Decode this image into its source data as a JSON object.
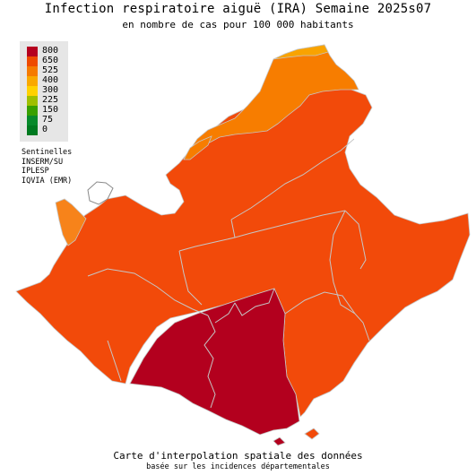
{
  "title": "Infection respiratoire aiguë (IRA) Semaine 2025s07",
  "subtitle": "en nombre de cas pour 100 000 habitants",
  "legend": [
    {
      "label": "800",
      "color": "#b5001f"
    },
    {
      "label": "650",
      "color": "#ee4a00"
    },
    {
      "label": "525",
      "color": "#f57a00"
    },
    {
      "label": "400",
      "color": "#f9a800"
    },
    {
      "label": "300",
      "color": "#ffd100"
    },
    {
      "label": "225",
      "color": "#9fbf00"
    },
    {
      "label": "150",
      "color": "#38a000"
    },
    {
      "label": "75",
      "color": "#078a2b"
    },
    {
      "label": "0",
      "color": "#007a20"
    }
  ],
  "sources": [
    "Sentinelles",
    "INSERM/SU",
    "IPLESP",
    "IQVIA (EMR)"
  ],
  "footer_line1": "Carte d'interpolation spatiale des données",
  "footer_line2": "basée sur les incidences départementales",
  "colors": {
    "region_main": "#f24a0a",
    "north_orange": "#f77d00",
    "north_light": "#f9a300",
    "south_dark": "#b3001e",
    "west_tip": "#f7831a"
  }
}
